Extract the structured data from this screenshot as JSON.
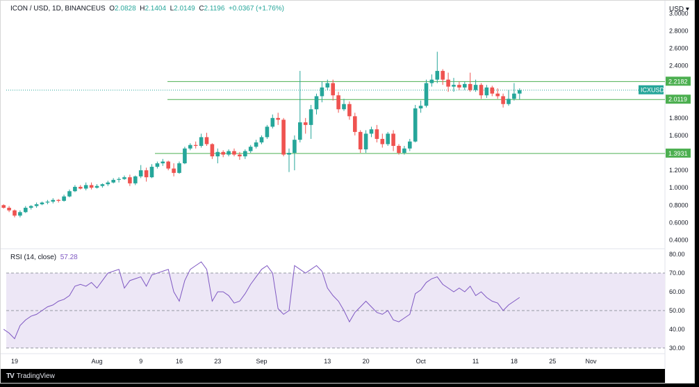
{
  "header": {
    "symbol": "ICON / USD, 1D, BINANCEUS",
    "open_label": "O",
    "open": "2.0828",
    "high_label": "H",
    "high": "2.1404",
    "low_label": "L",
    "low": "2.0149",
    "close_label": "C",
    "close": "2.1196",
    "change": "+0.0367 (+1.76%)"
  },
  "price_axis_unit": "USD",
  "rsi_header": {
    "label": "RSI (14, close)",
    "value": "57.28"
  },
  "branding": "TradingView",
  "colors": {
    "up": "#26a69a",
    "down": "#ef5350",
    "level_line": "#4caf50",
    "rsi_line": "#7e57c2",
    "rsi_band": "#ede7f6",
    "price_badge": "#26a69a",
    "level_badge": "#4caf50"
  },
  "chart_data": [
    {
      "type": "candlestick",
      "x_tick_labels": [
        "19",
        "Aug",
        "9",
        "16",
        "23",
        "Sep",
        "13",
        "20",
        "Oct",
        "11",
        "18",
        "25",
        "Nov"
      ],
      "y_ticks": [
        "0.4000",
        "0.6000",
        "0.8000",
        "1.0000",
        "1.2000",
        "1.4000",
        "1.6000",
        "1.8000",
        "2.0000",
        "2.2000",
        "2.4000",
        "2.6000",
        "2.8000",
        "3.0000"
      ],
      "ylim": [
        0.3,
        3.05
      ],
      "current_price": {
        "label": "ICXUSD",
        "value": 2.1196
      },
      "horizontal_levels": [
        {
          "value": 2.2182,
          "label": "2.2182"
        },
        {
          "value": 2.0119,
          "label": "2.0119"
        },
        {
          "value": 1.3931,
          "label": "1.3931"
        }
      ],
      "candles": [
        {
          "date": "Jul 17",
          "o": 0.8,
          "h": 0.81,
          "l": 0.76,
          "c": 0.77
        },
        {
          "date": "Jul 18",
          "o": 0.77,
          "h": 0.79,
          "l": 0.72,
          "c": 0.74
        },
        {
          "date": "Jul 19",
          "o": 0.74,
          "h": 0.75,
          "l": 0.66,
          "c": 0.68
        },
        {
          "date": "Jul 20",
          "o": 0.68,
          "h": 0.74,
          "l": 0.66,
          "c": 0.72
        },
        {
          "date": "Jul 21",
          "o": 0.72,
          "h": 0.79,
          "l": 0.71,
          "c": 0.77
        },
        {
          "date": "Jul 22",
          "o": 0.77,
          "h": 0.8,
          "l": 0.75,
          "c": 0.79
        },
        {
          "date": "Jul 23",
          "o": 0.79,
          "h": 0.83,
          "l": 0.77,
          "c": 0.81
        },
        {
          "date": "Jul 24",
          "o": 0.81,
          "h": 0.84,
          "l": 0.8,
          "c": 0.83
        },
        {
          "date": "Jul 25",
          "o": 0.83,
          "h": 0.86,
          "l": 0.81,
          "c": 0.84
        },
        {
          "date": "Jul 26",
          "o": 0.84,
          "h": 0.88,
          "l": 0.82,
          "c": 0.86
        },
        {
          "date": "Jul 27",
          "o": 0.86,
          "h": 0.87,
          "l": 0.83,
          "c": 0.85
        },
        {
          "date": "Jul 28",
          "o": 0.85,
          "h": 0.92,
          "l": 0.84,
          "c": 0.9
        },
        {
          "date": "Jul 29",
          "o": 0.9,
          "h": 0.98,
          "l": 0.89,
          "c": 0.96
        },
        {
          "date": "Jul 30",
          "o": 0.96,
          "h": 1.03,
          "l": 0.95,
          "c": 1.01
        },
        {
          "date": "Jul 31",
          "o": 1.01,
          "h": 1.03,
          "l": 0.98,
          "c": 0.99
        },
        {
          "date": "Aug 1",
          "o": 0.99,
          "h": 1.06,
          "l": 0.97,
          "c": 1.03
        },
        {
          "date": "Aug 2",
          "o": 1.03,
          "h": 1.06,
          "l": 0.98,
          "c": 1.0
        },
        {
          "date": "Aug 3",
          "o": 1.0,
          "h": 1.04,
          "l": 0.99,
          "c": 1.02
        },
        {
          "date": "Aug 4",
          "o": 1.02,
          "h": 1.05,
          "l": 1.0,
          "c": 1.04
        },
        {
          "date": "Aug 5",
          "o": 1.04,
          "h": 1.08,
          "l": 1.02,
          "c": 1.06
        },
        {
          "date": "Aug 6",
          "o": 1.06,
          "h": 1.11,
          "l": 1.05,
          "c": 1.09
        },
        {
          "date": "Aug 7",
          "o": 1.09,
          "h": 1.12,
          "l": 1.06,
          "c": 1.1
        },
        {
          "date": "Aug 8",
          "o": 1.1,
          "h": 1.14,
          "l": 1.09,
          "c": 1.12
        },
        {
          "date": "Aug 9",
          "o": 1.12,
          "h": 1.15,
          "l": 1.02,
          "c": 1.05
        },
        {
          "date": "Aug 10",
          "o": 1.05,
          "h": 1.14,
          "l": 1.03,
          "c": 1.13
        },
        {
          "date": "Aug 11",
          "o": 1.13,
          "h": 1.26,
          "l": 1.11,
          "c": 1.2
        },
        {
          "date": "Aug 12",
          "o": 1.2,
          "h": 1.23,
          "l": 1.07,
          "c": 1.12
        },
        {
          "date": "Aug 13",
          "o": 1.12,
          "h": 1.27,
          "l": 1.11,
          "c": 1.24
        },
        {
          "date": "Aug 14",
          "o": 1.24,
          "h": 1.3,
          "l": 1.22,
          "c": 1.28
        },
        {
          "date": "Aug 15",
          "o": 1.28,
          "h": 1.33,
          "l": 1.25,
          "c": 1.3
        },
        {
          "date": "Aug 16",
          "o": 1.3,
          "h": 1.31,
          "l": 1.2,
          "c": 1.22
        },
        {
          "date": "Aug 17",
          "o": 1.22,
          "h": 1.28,
          "l": 1.13,
          "c": 1.17
        },
        {
          "date": "Aug 18",
          "o": 1.17,
          "h": 1.3,
          "l": 1.16,
          "c": 1.28
        },
        {
          "date": "Aug 19",
          "o": 1.28,
          "h": 1.47,
          "l": 1.27,
          "c": 1.45
        },
        {
          "date": "Aug 20",
          "o": 1.45,
          "h": 1.51,
          "l": 1.43,
          "c": 1.49
        },
        {
          "date": "Aug 21",
          "o": 1.49,
          "h": 1.53,
          "l": 1.45,
          "c": 1.48
        },
        {
          "date": "Aug 22",
          "o": 1.48,
          "h": 1.62,
          "l": 1.46,
          "c": 1.58
        },
        {
          "date": "Aug 23",
          "o": 1.58,
          "h": 1.63,
          "l": 1.48,
          "c": 1.5
        },
        {
          "date": "Aug 24",
          "o": 1.5,
          "h": 1.51,
          "l": 1.33,
          "c": 1.36
        },
        {
          "date": "Aug 25",
          "o": 1.36,
          "h": 1.45,
          "l": 1.28,
          "c": 1.41
        },
        {
          "date": "Aug 26",
          "o": 1.41,
          "h": 1.43,
          "l": 1.35,
          "c": 1.38
        },
        {
          "date": "Aug 27",
          "o": 1.38,
          "h": 1.44,
          "l": 1.36,
          "c": 1.42
        },
        {
          "date": "Aug 28",
          "o": 1.42,
          "h": 1.45,
          "l": 1.36,
          "c": 1.38
        },
        {
          "date": "Aug 29",
          "o": 1.38,
          "h": 1.41,
          "l": 1.32,
          "c": 1.36
        },
        {
          "date": "Aug 30",
          "o": 1.36,
          "h": 1.44,
          "l": 1.33,
          "c": 1.42
        },
        {
          "date": "Aug 31",
          "o": 1.42,
          "h": 1.49,
          "l": 1.4,
          "c": 1.47
        },
        {
          "date": "Sep 1",
          "o": 1.47,
          "h": 1.55,
          "l": 1.45,
          "c": 1.52
        },
        {
          "date": "Sep 2",
          "o": 1.52,
          "h": 1.6,
          "l": 1.5,
          "c": 1.58
        },
        {
          "date": "Sep 3",
          "o": 1.58,
          "h": 1.72,
          "l": 1.56,
          "c": 1.7
        },
        {
          "date": "Sep 4",
          "o": 1.7,
          "h": 1.84,
          "l": 1.68,
          "c": 1.8
        },
        {
          "date": "Sep 5",
          "o": 1.8,
          "h": 1.86,
          "l": 1.72,
          "c": 1.78
        },
        {
          "date": "Sep 6",
          "o": 1.78,
          "h": 1.8,
          "l": 1.36,
          "c": 1.38
        },
        {
          "date": "Sep 7",
          "o": 1.38,
          "h": 1.45,
          "l": 1.18,
          "c": 1.4
        },
        {
          "date": "Sep 8",
          "o": 1.4,
          "h": 1.6,
          "l": 1.2,
          "c": 1.55
        },
        {
          "date": "Sep 9",
          "o": 1.55,
          "h": 2.34,
          "l": 1.52,
          "c": 1.75
        },
        {
          "date": "Sep 10",
          "o": 1.75,
          "h": 1.8,
          "l": 1.62,
          "c": 1.72
        },
        {
          "date": "Sep 11",
          "o": 1.72,
          "h": 1.95,
          "l": 1.56,
          "c": 1.9
        },
        {
          "date": "Sep 12",
          "o": 1.9,
          "h": 2.08,
          "l": 1.84,
          "c": 2.05
        },
        {
          "date": "Sep 13",
          "o": 2.05,
          "h": 2.22,
          "l": 1.98,
          "c": 2.15
        },
        {
          "date": "Sep 14",
          "o": 2.15,
          "h": 2.24,
          "l": 2.12,
          "c": 2.2
        },
        {
          "date": "Sep 15",
          "o": 2.2,
          "h": 2.24,
          "l": 2.0,
          "c": 2.06
        },
        {
          "date": "Sep 16",
          "o": 2.06,
          "h": 2.1,
          "l": 1.86,
          "c": 1.9
        },
        {
          "date": "Sep 17",
          "o": 1.9,
          "h": 2.02,
          "l": 1.88,
          "c": 1.96
        },
        {
          "date": "Sep 18",
          "o": 1.96,
          "h": 1.99,
          "l": 1.78,
          "c": 1.82
        },
        {
          "date": "Sep 19",
          "o": 1.82,
          "h": 1.86,
          "l": 1.6,
          "c": 1.64
        },
        {
          "date": "Sep 20",
          "o": 1.64,
          "h": 1.66,
          "l": 1.4,
          "c": 1.44
        },
        {
          "date": "Sep 21",
          "o": 1.44,
          "h": 1.66,
          "l": 1.4,
          "c": 1.62
        },
        {
          "date": "Sep 22",
          "o": 1.62,
          "h": 1.7,
          "l": 1.58,
          "c": 1.67
        },
        {
          "date": "Sep 23",
          "o": 1.67,
          "h": 1.72,
          "l": 1.52,
          "c": 1.56
        },
        {
          "date": "Sep 24",
          "o": 1.56,
          "h": 1.62,
          "l": 1.46,
          "c": 1.5
        },
        {
          "date": "Sep 25",
          "o": 1.5,
          "h": 1.64,
          "l": 1.48,
          "c": 1.62
        },
        {
          "date": "Sep 26",
          "o": 1.62,
          "h": 1.66,
          "l": 1.42,
          "c": 1.48
        },
        {
          "date": "Sep 27",
          "o": 1.48,
          "h": 1.5,
          "l": 1.38,
          "c": 1.4
        },
        {
          "date": "Sep 28",
          "o": 1.4,
          "h": 1.48,
          "l": 1.38,
          "c": 1.45
        },
        {
          "date": "Sep 29",
          "o": 1.45,
          "h": 1.56,
          "l": 1.42,
          "c": 1.53
        },
        {
          "date": "Sep 30",
          "o": 1.53,
          "h": 1.95,
          "l": 1.52,
          "c": 1.91
        },
        {
          "date": "Oct 1",
          "o": 1.91,
          "h": 2.0,
          "l": 1.86,
          "c": 1.94
        },
        {
          "date": "Oct 2",
          "o": 1.94,
          "h": 2.24,
          "l": 1.92,
          "c": 2.2
        },
        {
          "date": "Oct 3",
          "o": 2.2,
          "h": 2.3,
          "l": 2.16,
          "c": 2.24
        },
        {
          "date": "Oct 4",
          "o": 2.24,
          "h": 2.56,
          "l": 2.2,
          "c": 2.34
        },
        {
          "date": "Oct 5",
          "o": 2.34,
          "h": 2.36,
          "l": 2.18,
          "c": 2.24
        },
        {
          "date": "Oct 6",
          "o": 2.24,
          "h": 2.32,
          "l": 2.1,
          "c": 2.16
        },
        {
          "date": "Oct 7",
          "o": 2.16,
          "h": 2.26,
          "l": 2.1,
          "c": 2.18
        },
        {
          "date": "Oct 8",
          "o": 2.18,
          "h": 2.22,
          "l": 2.12,
          "c": 2.15
        },
        {
          "date": "Oct 9",
          "o": 2.15,
          "h": 2.22,
          "l": 2.12,
          "c": 2.19
        },
        {
          "date": "Oct 10",
          "o": 2.19,
          "h": 2.32,
          "l": 2.1,
          "c": 2.12
        },
        {
          "date": "Oct 11",
          "o": 2.12,
          "h": 2.24,
          "l": 2.1,
          "c": 2.18
        },
        {
          "date": "Oct 12",
          "o": 2.18,
          "h": 2.2,
          "l": 2.02,
          "c": 2.06
        },
        {
          "date": "Oct 13",
          "o": 2.06,
          "h": 2.18,
          "l": 2.03,
          "c": 2.15
        },
        {
          "date": "Oct 14",
          "o": 2.15,
          "h": 2.17,
          "l": 2.05,
          "c": 2.08
        },
        {
          "date": "Oct 15",
          "o": 2.08,
          "h": 2.14,
          "l": 2.02,
          "c": 2.05
        },
        {
          "date": "Oct 16",
          "o": 2.05,
          "h": 2.08,
          "l": 1.92,
          "c": 1.96
        },
        {
          "date": "Oct 17",
          "o": 1.96,
          "h": 2.12,
          "l": 1.94,
          "c": 2.02
        },
        {
          "date": "Oct 18",
          "o": 2.02,
          "h": 2.2,
          "l": 2.0,
          "c": 2.08
        },
        {
          "date": "Oct 19",
          "o": 2.08,
          "h": 2.14,
          "l": 2.01,
          "c": 2.12
        }
      ]
    },
    {
      "type": "line",
      "title": "RSI (14, close)",
      "y_ticks": [
        "30.00",
        "40.00",
        "50.00",
        "60.00",
        "70.00",
        "80.00"
      ],
      "ylim": [
        27,
        83
      ],
      "bands": [
        30,
        50,
        70
      ],
      "values": [
        40,
        38,
        35,
        42,
        45,
        47,
        48,
        50,
        52,
        53,
        55,
        56,
        58,
        63,
        64,
        63,
        65,
        62,
        66,
        70,
        71,
        72,
        62,
        66,
        67,
        68,
        63,
        69,
        70,
        71,
        72,
        60,
        55,
        66,
        72,
        74,
        76,
        72,
        55,
        60,
        60,
        58,
        54,
        55,
        59,
        64,
        68,
        72,
        74,
        70,
        51,
        48,
        50,
        74,
        72,
        70,
        72,
        74,
        71,
        62,
        58,
        55,
        50,
        44,
        49,
        52,
        55,
        52,
        49,
        48,
        50,
        45,
        44,
        46,
        48,
        59,
        61,
        65,
        67,
        68,
        64,
        62,
        60,
        62,
        60,
        63,
        58,
        60,
        57,
        55,
        54,
        50,
        53,
        55,
        57
      ]
    }
  ]
}
